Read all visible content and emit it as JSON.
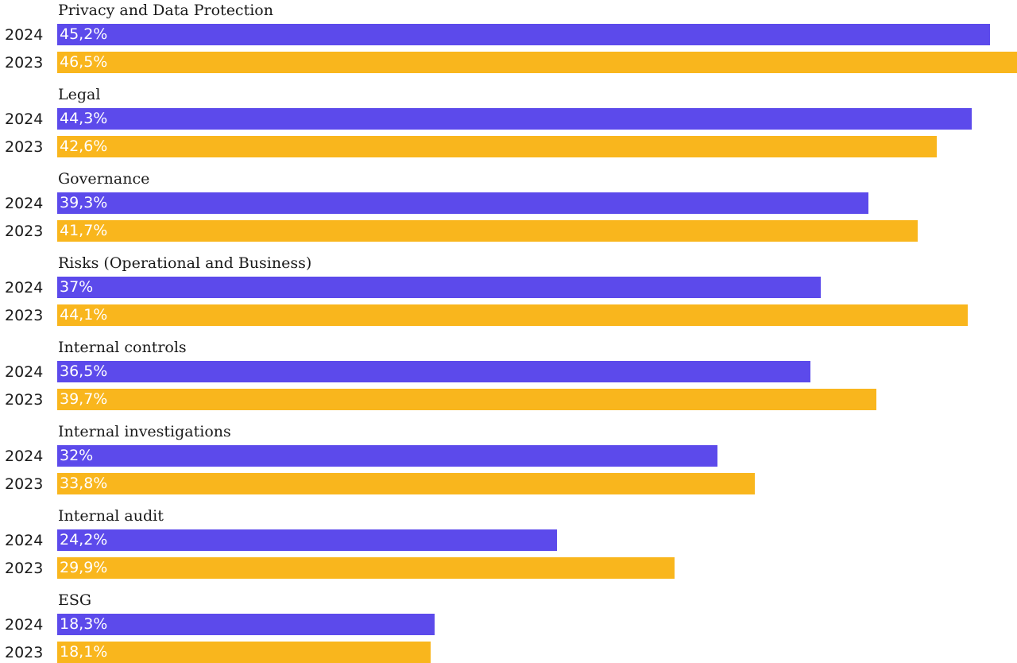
{
  "chart_data": {
    "type": "bar",
    "orientation": "horizontal",
    "grid": false,
    "xlim": [
      0,
      46.5
    ],
    "colors": {
      "2024": "#5c4aeb",
      "2023": "#f9b61d"
    },
    "categories": [
      "Privacy and Data Protection",
      "Legal",
      "Governance",
      "Risks (Operational and Business)",
      "Internal controls",
      "Internal investigations",
      "Internal audit",
      "ESG"
    ],
    "series": [
      {
        "name": "2024",
        "values": [
          45.2,
          44.3,
          39.3,
          37,
          36.5,
          32,
          24.2,
          18.3
        ],
        "labels": [
          "45,2%",
          "44,3%",
          "39,3%",
          "37%",
          "36,5%",
          "32%",
          "24,2%",
          "18,3%"
        ]
      },
      {
        "name": "2023",
        "values": [
          46.5,
          42.6,
          41.7,
          44.1,
          39.7,
          33.8,
          29.9,
          18.1
        ],
        "labels": [
          "46,5%",
          "42,6%",
          "41,7%",
          "44,1%",
          "39,7%",
          "33,8%",
          "29,9%",
          "18,1%"
        ]
      }
    ]
  }
}
